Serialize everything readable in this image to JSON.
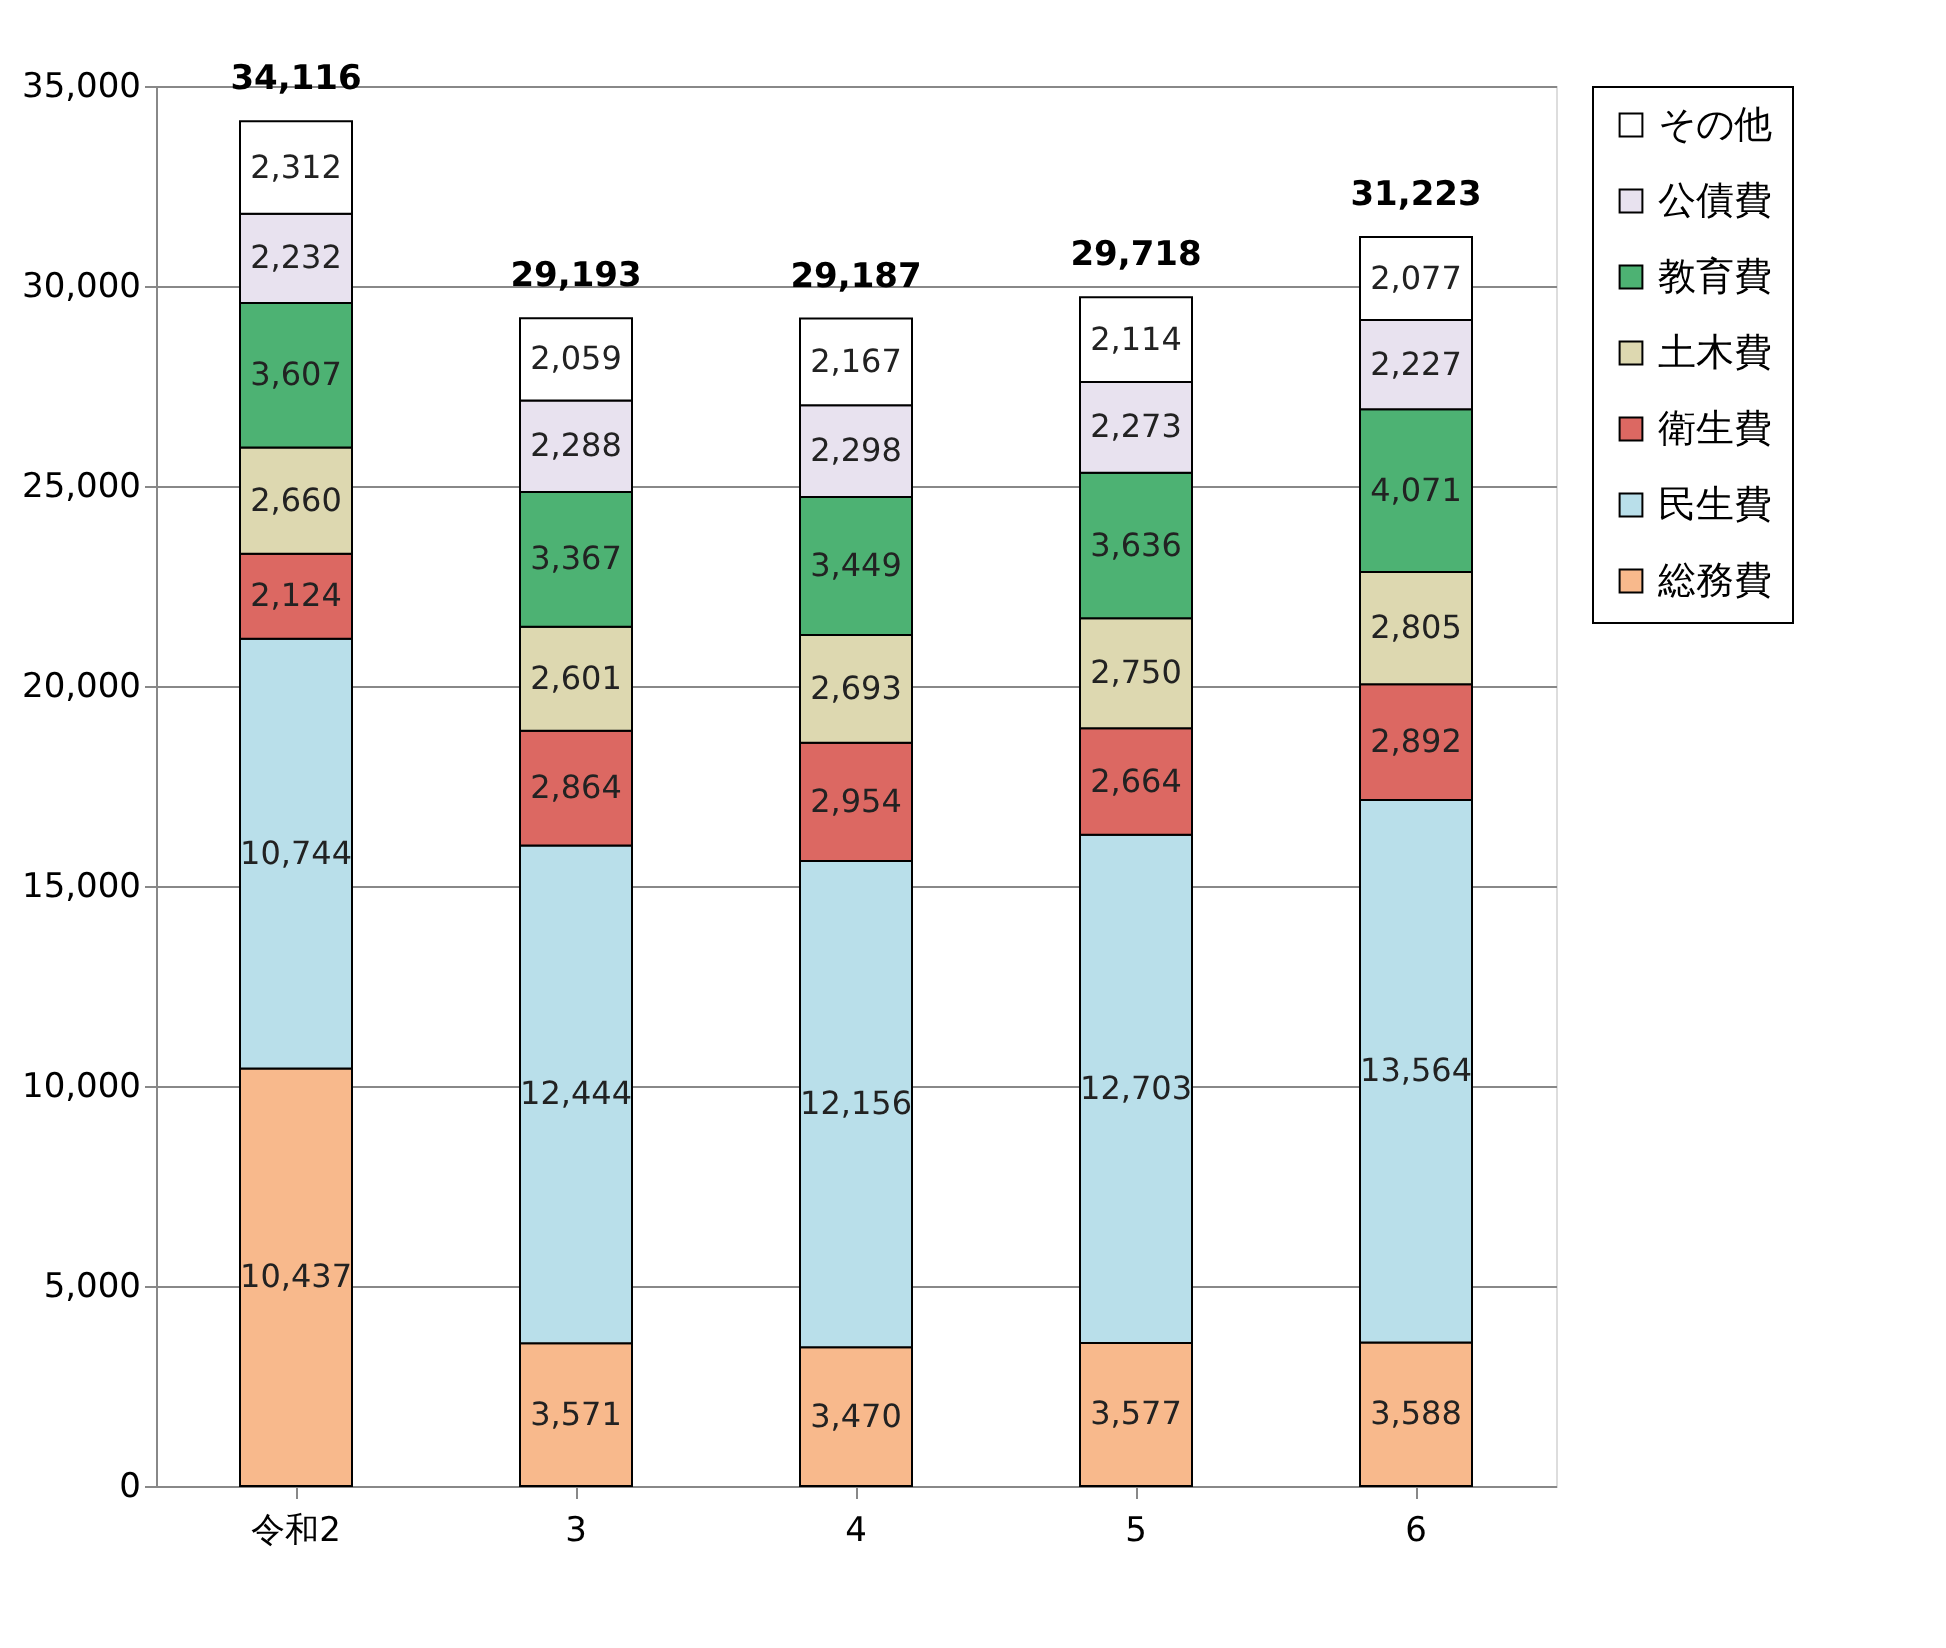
{
  "chart_data": {
    "type": "bar",
    "stacked": true,
    "categories": [
      "令和2",
      "3",
      "4",
      "5",
      "6"
    ],
    "series": [
      {
        "name": "総務費",
        "color": "#f8b98c",
        "values": [
          10437,
          3571,
          3470,
          3577,
          3588
        ],
        "value_labels": [
          "10,437",
          "3,571",
          "3,470",
          "3,577",
          "3,588"
        ]
      },
      {
        "name": "民生費",
        "color": "#b9dfea",
        "values": [
          10744,
          12444,
          12156,
          12703,
          13564
        ],
        "value_labels": [
          "10,744",
          "12,444",
          "12,156",
          "12,703",
          "13,564"
        ]
      },
      {
        "name": "衛生費",
        "color": "#dc6862",
        "values": [
          2124,
          2864,
          2954,
          2664,
          2892
        ],
        "value_labels": [
          "2,124",
          "2,864",
          "2,954",
          "2,664",
          "2,892"
        ]
      },
      {
        "name": "土木費",
        "color": "#ddd8b0",
        "values": [
          2660,
          2601,
          2693,
          2750,
          2805
        ],
        "value_labels": [
          "2,660",
          "2,601",
          "2,693",
          "2,750",
          "2,805"
        ]
      },
      {
        "name": "教育費",
        "color": "#4db273",
        "values": [
          3607,
          3367,
          3449,
          3636,
          4071
        ],
        "value_labels": [
          "3,607",
          "3,367",
          "3,449",
          "3,636",
          "4,071"
        ]
      },
      {
        "name": "公債費",
        "color": "#e8e2ef",
        "values": [
          2232,
          2288,
          2298,
          2273,
          2227
        ],
        "value_labels": [
          "2,232",
          "2,288",
          "2,298",
          "2,273",
          "2,227"
        ]
      },
      {
        "name": "その他",
        "color": "#ffffff",
        "values": [
          2312,
          2059,
          2167,
          2114,
          2077
        ],
        "value_labels": [
          "2,312",
          "2,059",
          "2,167",
          "2,114",
          "2,077"
        ]
      }
    ],
    "totals": [
      "34,116",
      "29,193",
      "29,187",
      "29,718",
      "31,223"
    ],
    "ylim": [
      0,
      35000
    ],
    "yticks": [
      {
        "value": 0,
        "label": "0"
      },
      {
        "value": 5000,
        "label": "5,000"
      },
      {
        "value": 10000,
        "label": "10,000"
      },
      {
        "value": 15000,
        "label": "15,000"
      },
      {
        "value": 20000,
        "label": "20,000"
      },
      {
        "value": 25000,
        "label": "25,000"
      },
      {
        "value": 30000,
        "label": "30,000"
      },
      {
        "value": 35000,
        "label": "35,000"
      }
    ],
    "grid": "y",
    "legend": "right"
  }
}
